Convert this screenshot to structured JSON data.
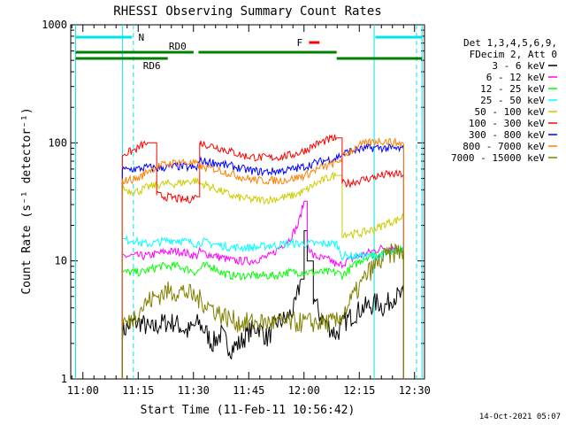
{
  "chart_data": {
    "type": "line",
    "title": "RHESSI Observing Summary Count Rates",
    "xlabel": "Start Time (11-Feb-11 10:56:42)",
    "ylabel": "Count Rate (s⁻¹ detector⁻¹)",
    "y_scale": "log",
    "ylim": [
      1,
      1000
    ],
    "xlim": [
      0,
      5760
    ],
    "x_ticks": [
      {
        "t": 198,
        "label": "11:00"
      },
      {
        "t": 1098,
        "label": "11:15"
      },
      {
        "t": 1998,
        "label": "11:30"
      },
      {
        "t": 2898,
        "label": "11:45"
      },
      {
        "t": 3798,
        "label": "12:00"
      },
      {
        "t": 4698,
        "label": "12:15"
      },
      {
        "t": 5598,
        "label": "12:30"
      }
    ],
    "y_ticks": [
      {
        "v": 1,
        "label": "1"
      },
      {
        "v": 10,
        "label": "10"
      },
      {
        "v": 100,
        "label": "100"
      },
      {
        "v": 1000,
        "label": "1000"
      }
    ],
    "legend_header": [
      "Det 1,3,4,5,6,9,",
      "FDecim 2, Att 0"
    ],
    "legend_position": "right",
    "series": [
      {
        "name": "3 - 6 keV",
        "color": "#000000",
        "x": [
          840,
          1000,
          1150,
          1300,
          1500,
          1700,
          1900,
          2080,
          2200,
          2300,
          2450,
          2600,
          2750,
          2900,
          3050,
          3200,
          3350,
          3500,
          3650,
          3750,
          3800,
          3850,
          3950,
          4050,
          4250,
          4330,
          4450,
          4600,
          4750,
          4900,
          5000,
          5100,
          5250,
          5350,
          5420
        ],
        "y": [
          2.5,
          3,
          3,
          2.6,
          3,
          3,
          2.5,
          3,
          2.5,
          2,
          2.4,
          1.8,
          2,
          2.5,
          2.8,
          2.2,
          3,
          3.2,
          4,
          7,
          18,
          10,
          5,
          3.5,
          2.6,
          2.4,
          3,
          3.5,
          4,
          4.2,
          4.5,
          4,
          5,
          5,
          5
        ]
      },
      {
        "name": "6 - 12 keV",
        "color": "#ff00ff",
        "x": [
          840,
          900,
          1000,
          1100,
          1150,
          1250,
          1400,
          1550,
          1700,
          1800,
          1900,
          2050,
          2100,
          2200,
          2350,
          2500,
          2650,
          2800,
          2950,
          3100,
          3250,
          3400,
          3550,
          3700,
          3800,
          3850,
          3950,
          4100,
          4250,
          4350,
          4500,
          4700,
          4900,
          5100,
          5250,
          5350,
          5420
        ],
        "y": [
          11,
          11,
          11,
          11,
          11,
          11,
          11.5,
          12,
          12,
          12,
          11.5,
          11,
          12,
          11.5,
          11,
          10.5,
          10,
          10,
          10,
          10.5,
          11,
          13,
          15,
          20,
          32,
          14,
          11,
          10.5,
          10,
          9,
          10,
          11,
          12,
          13,
          13,
          12.5,
          12.5
        ]
      },
      {
        "name": "12 - 25 keV",
        "color": "#00ff00",
        "x": [
          840,
          950,
          1050,
          1150,
          1300,
          1450,
          1600,
          1750,
          1900,
          2050,
          2150,
          2300,
          2450,
          2600,
          2750,
          2900,
          3050,
          3200,
          3350,
          3500,
          3650,
          3800,
          3950,
          4100,
          4250,
          4330,
          4420,
          4550,
          4700,
          4850,
          5000,
          5150,
          5300,
          5420
        ],
        "y": [
          8,
          8,
          8,
          8,
          8.5,
          9,
          9,
          9,
          8.5,
          8,
          9,
          9,
          8,
          7.5,
          7.5,
          7.5,
          7.5,
          7.5,
          7.5,
          8,
          8,
          8,
          8,
          8,
          8,
          8,
          7.6,
          8.5,
          10,
          11,
          11.5,
          12,
          12.5,
          12.5
        ]
      },
      {
        "name": "25 - 50 keV",
        "color": "#00ffff",
        "x": [
          840,
          950,
          1050,
          1150,
          1300,
          1450,
          1600,
          1750,
          1900,
          2050,
          2150,
          2300,
          2450,
          2600,
          2750,
          2900,
          3050,
          3200,
          3350,
          3500,
          3650,
          3800,
          3950,
          4100,
          4250,
          4330,
          4420,
          4550,
          4700,
          4850,
          5000,
          5150,
          5300,
          5420
        ],
        "y": [
          15,
          15,
          15,
          14,
          14,
          14.5,
          15,
          15,
          14.5,
          14,
          14.5,
          14,
          13.5,
          13,
          13,
          13,
          13,
          13.5,
          13.5,
          14,
          14,
          14,
          14,
          14,
          14,
          14,
          11,
          11,
          11,
          11,
          11,
          11.5,
          12,
          12
        ]
      },
      {
        "name": "50 - 100 keV",
        "color": "#cccc00",
        "x": [
          840,
          900,
          1000,
          1100,
          1150,
          1250,
          1400,
          1550,
          1700,
          1800,
          1900,
          2050,
          2100,
          2200,
          2350,
          2500,
          2650,
          2800,
          2950,
          3100,
          3250,
          3400,
          3550,
          3700,
          3850,
          3950,
          4100,
          4250,
          4330,
          4420,
          4550,
          4700,
          4850,
          5000,
          5150,
          5300,
          5420
        ],
        "y": [
          42,
          40,
          39,
          39,
          40,
          42,
          44,
          45,
          45,
          46,
          47,
          48,
          45,
          44,
          41,
          38,
          35,
          34,
          33,
          33,
          33,
          34,
          35,
          37,
          40,
          44,
          48,
          52,
          53,
          17,
          17,
          17,
          18,
          19,
          21,
          22,
          24
        ]
      },
      {
        "name": "100 - 300 keV",
        "color": "#ff0000",
        "x": [
          840,
          900,
          1000,
          1100,
          1150,
          1250,
          1400,
          1550,
          1700,
          1800,
          1900,
          2050,
          2100,
          2200,
          2350,
          2500,
          2650,
          2800,
          2950,
          3100,
          3250,
          3400,
          3550,
          3700,
          3850,
          3950,
          4100,
          4250,
          4330,
          4420,
          4550,
          4700,
          4850,
          5000,
          5150,
          5300,
          5420
        ],
        "y": [
          80,
          82,
          85,
          90,
          95,
          100,
          36,
          35,
          34,
          33,
          33,
          35,
          100,
          97,
          93,
          88,
          83,
          78,
          76,
          75,
          75,
          76,
          78,
          82,
          88,
          95,
          102,
          108,
          110,
          45,
          46,
          48,
          50,
          52,
          54,
          54,
          54
        ]
      },
      {
        "name": "300 - 800 keV",
        "color": "#0000ff",
        "x": [
          840,
          900,
          1000,
          1100,
          1150,
          1250,
          1400,
          1550,
          1700,
          1800,
          1900,
          2050,
          2100,
          2200,
          2350,
          2500,
          2650,
          2800,
          2950,
          3100,
          3250,
          3400,
          3550,
          3700,
          3850,
          3950,
          4100,
          4250,
          4330,
          4420,
          4550,
          4700,
          4850,
          5000,
          5150,
          5300,
          5420
        ],
        "y": [
          59,
          59,
          60,
          60,
          61,
          62,
          61,
          62,
          63,
          63,
          62,
          61,
          70,
          69,
          68,
          65,
          63,
          60,
          58,
          57,
          57,
          58,
          59,
          61,
          64,
          67,
          70,
          73,
          75,
          80,
          85,
          88,
          90,
          91,
          90,
          89,
          88
        ]
      },
      {
        "name": "800 - 7000 keV",
        "color": "#ff8000",
        "x": [
          840,
          900,
          1000,
          1100,
          1150,
          1250,
          1400,
          1550,
          1700,
          1800,
          1900,
          2050,
          2100,
          2200,
          2350,
          2500,
          2650,
          2800,
          2950,
          3100,
          3250,
          3400,
          3550,
          3700,
          3850,
          3950,
          4100,
          4250,
          4330,
          4420,
          4550,
          4700,
          4850,
          5000,
          5150,
          5300,
          5420
        ],
        "y": [
          48,
          48,
          49,
          50,
          52,
          58,
          63,
          66,
          68,
          69,
          68,
          66,
          62,
          61,
          60,
          57,
          54,
          51,
          49,
          48,
          48,
          48,
          49,
          51,
          54,
          58,
          62,
          66,
          68,
          75,
          85,
          95,
          100,
          104,
          103,
          100,
          98
        ]
      },
      {
        "name": "7000 - 15000 keV",
        "color": "#808000",
        "x": [
          840,
          950,
          1050,
          1150,
          1250,
          1400,
          1550,
          1700,
          1850,
          2000,
          2150,
          2300,
          2450,
          2600,
          2750,
          2900,
          3050,
          3200,
          3350,
          3500,
          3650,
          3800,
          3950,
          4050,
          4150,
          4250,
          4330,
          4420,
          4550,
          4700,
          4850,
          5000,
          5150,
          5300,
          5420
        ],
        "y": [
          3,
          3,
          3.5,
          4,
          4.5,
          5,
          5.5,
          5.5,
          5.5,
          5,
          4.5,
          4,
          3.5,
          3.2,
          3,
          3,
          3,
          3,
          3,
          3,
          3,
          3,
          3,
          3,
          3,
          3,
          3,
          3.5,
          4.5,
          6,
          8,
          9.5,
          11,
          12,
          12
        ]
      }
    ],
    "overlays": {
      "cyan_vlines": [
        80,
        840,
        4940,
        5720
      ],
      "cyan_dashed_vlines": [
        1020,
        5630
      ],
      "night_bars": [
        {
          "x0": 80,
          "x1": 1000,
          "label": "N"
        },
        {
          "x0": 4960,
          "x1": 5720,
          "label": ""
        }
      ],
      "saa_green_bars": [
        {
          "x0": 80,
          "x1": 2000,
          "level": "upper",
          "label": "RD0"
        },
        {
          "x0": 80,
          "x1": 1580,
          "level": "lower",
          "label": "RD6"
        },
        {
          "x0": 2080,
          "x1": 4330,
          "level": "upper",
          "label": ""
        },
        {
          "x0": 4330,
          "x1": 5720,
          "level": "lower",
          "label": ""
        }
      ],
      "flare_marker": {
        "x0": 3880,
        "x1": 4050,
        "label": "F"
      }
    }
  },
  "timestamp": "14-Oct-2021 05:07"
}
